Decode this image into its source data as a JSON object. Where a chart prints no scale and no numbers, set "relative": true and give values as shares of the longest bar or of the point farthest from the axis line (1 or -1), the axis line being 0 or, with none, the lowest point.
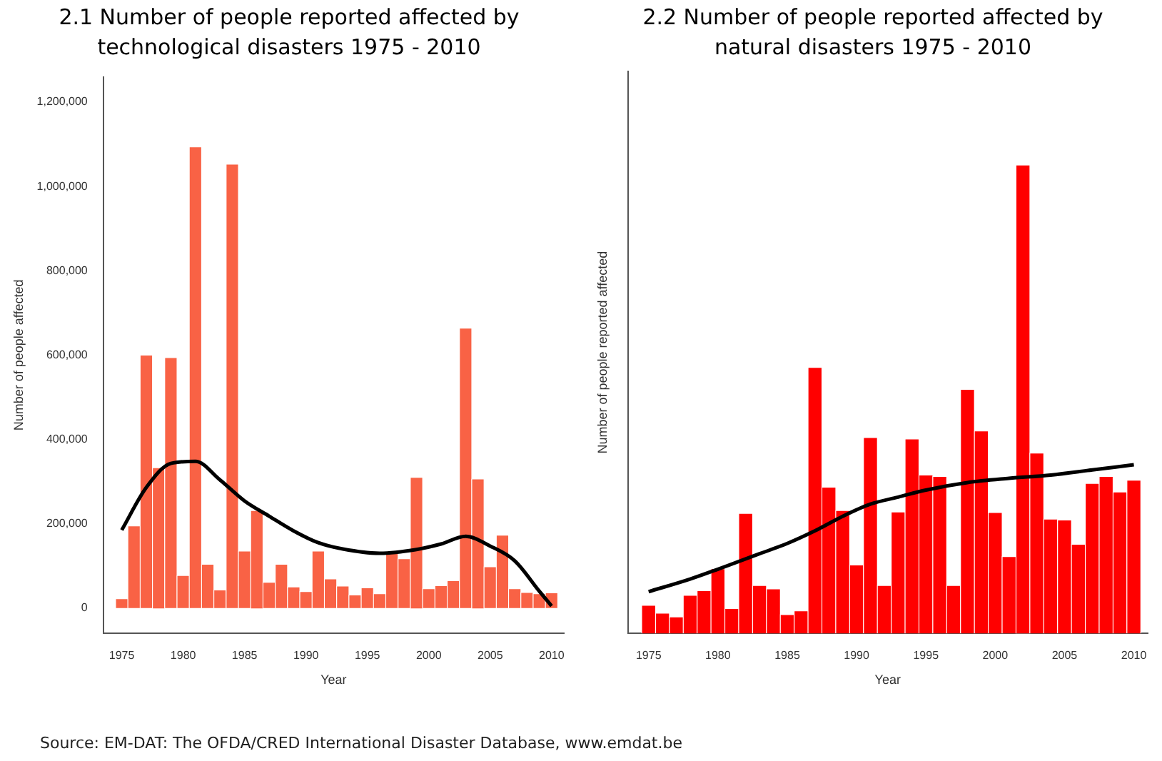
{
  "chart_data": [
    {
      "type": "bar",
      "title": "2.1 Number of people reported affected by technological disasters 1975 - 2010",
      "xlabel": "Year",
      "ylabel": "Number of people affected",
      "grid": false,
      "legend": false,
      "marker": "none",
      "xlim": [
        1973.5,
        2011
      ],
      "xticks": [
        1975,
        1980,
        1985,
        1990,
        1995,
        2000,
        2005,
        2010
      ],
      "ylim": [
        -60000,
        1260000
      ],
      "yticks": [
        {
          "value": 0,
          "label": "0"
        },
        {
          "value": 200000,
          "label": "200,000"
        },
        {
          "value": 400000,
          "label": "400,000"
        },
        {
          "value": 600000,
          "label": "600,000"
        },
        {
          "value": 800000,
          "label": "800,000"
        },
        {
          "value": 1000000,
          "label": "1,000,000"
        },
        {
          "value": 1200000,
          "label": "1,200,000"
        }
      ],
      "series": [
        {
          "color": "#f96245",
          "x": [
            1975,
            1976,
            1977,
            1978,
            1979,
            1980,
            1981,
            1982,
            1983,
            1984,
            1985,
            1986,
            1987,
            1988,
            1989,
            1990,
            1991,
            1992,
            1993,
            1994,
            1995,
            1996,
            1997,
            1998,
            1999,
            2000,
            2001,
            2002,
            2003,
            2004,
            2005,
            2006,
            2007,
            2008,
            2009,
            2010
          ],
          "values": [
            22000,
            195000,
            600000,
            333000,
            594000,
            77000,
            1094000,
            104000,
            43000,
            1053000,
            135000,
            231000,
            61000,
            104000,
            50000,
            39000,
            135000,
            69000,
            52000,
            31000,
            48000,
            34000,
            130000,
            117000,
            310000,
            46000,
            53000,
            65000,
            664000,
            306000,
            98000,
            173000,
            46000,
            37000,
            34000,
            36000
          ]
        },
        {
          "type": "line",
          "color": "#000000",
          "x": [
            1975,
            1977,
            1979,
            1981,
            1983,
            1985,
            1987,
            1989,
            1991,
            1993,
            1996,
            1999,
            2001,
            2003,
            2005,
            2007,
            2009,
            2010
          ],
          "values": [
            185000,
            286000,
            343000,
            348000,
            304000,
            254000,
            218000,
            183000,
            155000,
            140000,
            130000,
            139000,
            152000,
            170000,
            147000,
            112000,
            40000,
            5000
          ]
        }
      ],
      "annotations": [
        "Source: EM-DAT: The OFDA/CRED International Disaster Database, www.emdat.be"
      ]
    },
    {
      "type": "bar",
      "title": "2.2 Number of people reported affected by natural disasters 1975 - 2010",
      "xlabel": "Year",
      "ylabel": "Number of people reported affected",
      "grid": false,
      "legend": false,
      "marker": "none",
      "relative": true,
      "xlim": [
        1973.5,
        2011
      ],
      "xticks": [
        1975,
        1980,
        1985,
        1990,
        1995,
        2000,
        2005,
        2010
      ],
      "series": [
        {
          "color": "#ff0000",
          "x": [
            1975,
            1976,
            1977,
            1978,
            1979,
            1980,
            1981,
            1982,
            1983,
            1984,
            1985,
            1986,
            1987,
            1988,
            1989,
            1990,
            1991,
            1992,
            1993,
            1994,
            1995,
            1996,
            1997,
            1998,
            1999,
            2000,
            2001,
            2002,
            2003,
            2004,
            2005,
            2006,
            2007,
            2008,
            2009,
            2010
          ],
          "values": [
            0.06,
            0.043,
            0.035,
            0.081,
            0.091,
            0.138,
            0.053,
            0.256,
            0.102,
            0.095,
            0.04,
            0.048,
            0.568,
            0.312,
            0.262,
            0.146,
            0.418,
            0.102,
            0.259,
            0.415,
            0.338,
            0.335,
            0.102,
            0.521,
            0.432,
            0.258,
            0.164,
            1,
            0.385,
            0.244,
            0.242,
            0.19,
            0.32,
            0.335,
            0.302,
            0.327
          ]
        },
        {
          "type": "line",
          "color": "#000000",
          "x": [
            1975,
            1978,
            1980,
            1983,
            1985,
            1987,
            1989,
            1991,
            1993,
            1995,
            1998,
            2001,
            2004,
            2007,
            2010
          ],
          "values": [
            0.089,
            0.116,
            0.137,
            0.17,
            0.192,
            0.219,
            0.25,
            0.276,
            0.291,
            0.306,
            0.322,
            0.331,
            0.338,
            0.349,
            0.36
          ]
        }
      ]
    }
  ]
}
